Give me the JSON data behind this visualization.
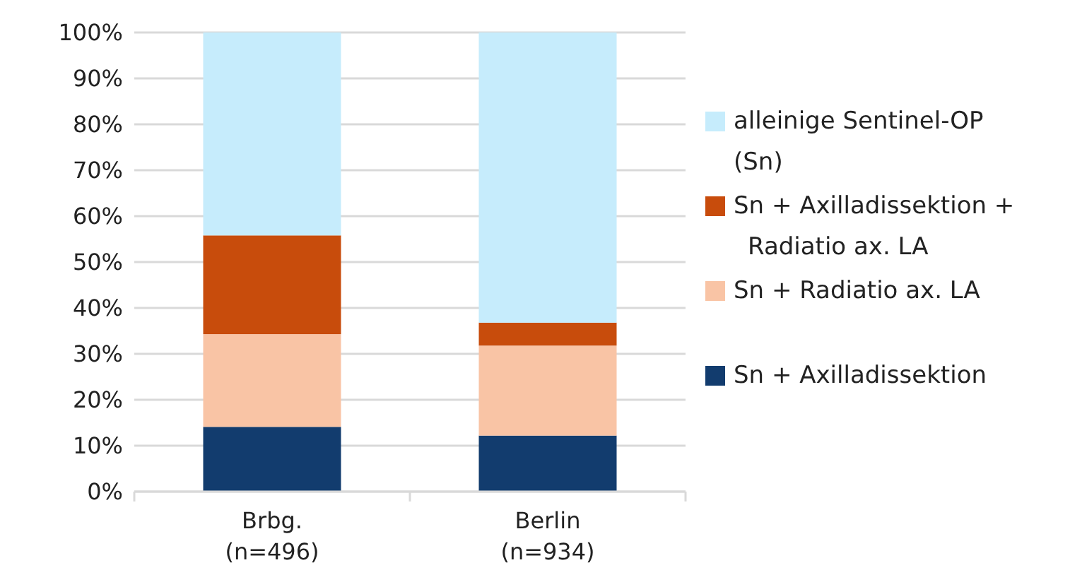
{
  "chart_data": {
    "type": "bar",
    "stacked": true,
    "categories": [
      "Brbg.\n(n=496)",
      "Berlin\n(n=934)"
    ],
    "series": [
      {
        "name": "Sn + Axilladissektion",
        "color": "#123c6e",
        "values": [
          14.1,
          12.2
        ]
      },
      {
        "name": "Sn + Radiatio ax. LA",
        "color": "#f9c4a5",
        "values": [
          20.2,
          19.6
        ]
      },
      {
        "name": "Sn + Axilladissektion + Radiatio ax. LA",
        "color": "#c84c0c",
        "values": [
          21.5,
          5.0
        ]
      },
      {
        "name": "alleinige Sentinel-OP (Sn)",
        "color": "#c6ecfc",
        "values": [
          44.2,
          63.2
        ]
      }
    ],
    "ylim": [
      0,
      100
    ],
    "yticks": [
      {
        "value": 0,
        "label": "0%"
      },
      {
        "value": 10,
        "label": "10%"
      },
      {
        "value": 20,
        "label": "20%"
      },
      {
        "value": 30,
        "label": "30%"
      },
      {
        "value": 40,
        "label": "40%"
      },
      {
        "value": 50,
        "label": "50%"
      },
      {
        "value": 60,
        "label": "60%"
      },
      {
        "value": 70,
        "label": "70%"
      },
      {
        "value": 80,
        "label": "80%"
      },
      {
        "value": 90,
        "label": "90%"
      },
      {
        "value": 100,
        "label": "100%"
      }
    ],
    "grid": "y",
    "legend": "right"
  }
}
